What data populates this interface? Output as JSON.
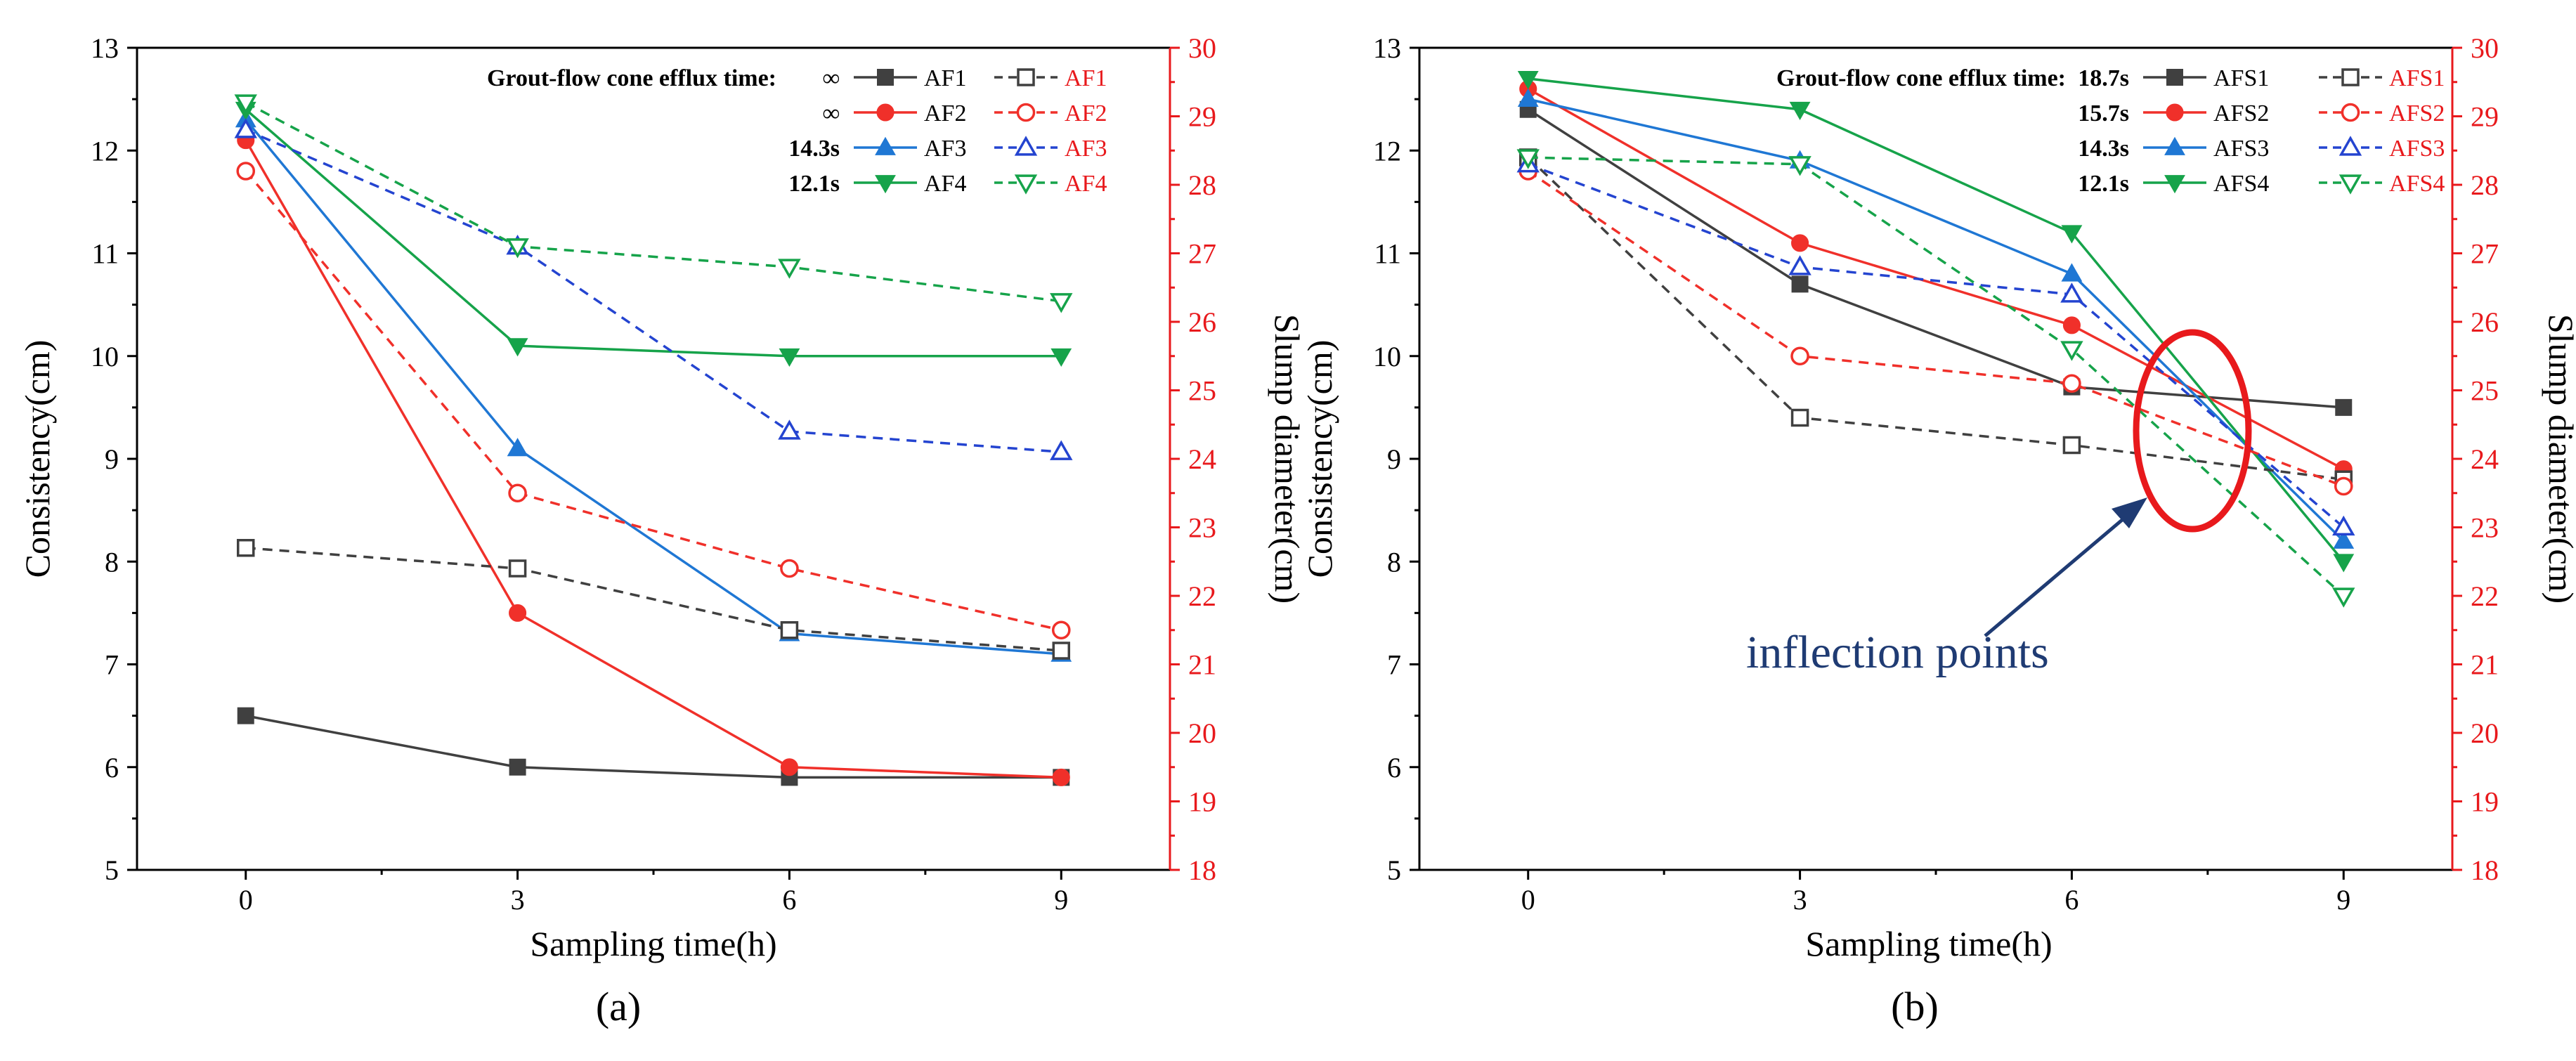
{
  "figure": {
    "panels": [
      "(a)",
      "(b)"
    ]
  },
  "annotation": {
    "text": "inflection points",
    "color": "#1f3b73",
    "ellipse_color": "#e8191c"
  },
  "chart_data": [
    {
      "panel_label": "(a)",
      "type": "line",
      "xlabel": "Sampling time(h)",
      "ylabel": "Consistency(cm)",
      "ylabel_right": "Slump diameter(cm)",
      "x": [
        0,
        3,
        6,
        9
      ],
      "xticks": [
        0,
        3,
        6,
        9
      ],
      "xlim": [
        -1.2,
        10.2
      ],
      "ylim": [
        5,
        13
      ],
      "yticks": [
        5,
        6,
        7,
        8,
        9,
        10,
        11,
        12,
        13
      ],
      "ylim_right": [
        18,
        30
      ],
      "yticks_right": [
        18,
        19,
        20,
        21,
        22,
        23,
        24,
        25,
        26,
        27,
        28,
        29,
        30
      ],
      "legend_title": "Grout-flow cone efflux time:",
      "legend_times": [
        "∞",
        "∞",
        "14.3s",
        "12.1s"
      ],
      "series": [
        {
          "name": "AF1",
          "axis": "left",
          "color": "#404040",
          "marker": "square",
          "filled": true,
          "dash": false,
          "values": [
            6.5,
            6.0,
            5.9,
            5.9
          ]
        },
        {
          "name": "AF2",
          "axis": "left",
          "color": "#f0302a",
          "marker": "circle",
          "filled": true,
          "dash": false,
          "values": [
            12.1,
            7.5,
            6.0,
            5.9
          ]
        },
        {
          "name": "AF3",
          "axis": "left",
          "color": "#1f77d4",
          "marker": "triangle-up",
          "filled": true,
          "dash": false,
          "values": [
            12.3,
            9.1,
            7.3,
            7.1
          ]
        },
        {
          "name": "AF4",
          "axis": "left",
          "color": "#16a34a",
          "marker": "triangle-down",
          "filled": true,
          "dash": false,
          "values": [
            12.4,
            10.1,
            10.0,
            10.0
          ]
        },
        {
          "name": "AF1",
          "axis": "right",
          "color": "#404040",
          "marker": "square",
          "filled": false,
          "dash": true,
          "values": [
            22.7,
            22.4,
            21.5,
            21.2
          ]
        },
        {
          "name": "AF2",
          "axis": "right",
          "color": "#f0302a",
          "marker": "circle",
          "filled": false,
          "dash": true,
          "values": [
            28.2,
            23.5,
            22.4,
            21.5
          ]
        },
        {
          "name": "AF3",
          "axis": "right",
          "color": "#2444d0",
          "marker": "triangle-up",
          "filled": false,
          "dash": true,
          "values": [
            28.8,
            27.1,
            24.4,
            24.1
          ]
        },
        {
          "name": "AF4",
          "axis": "right",
          "color": "#16a34a",
          "marker": "triangle-down",
          "filled": false,
          "dash": true,
          "values": [
            29.2,
            27.1,
            26.8,
            26.3
          ]
        }
      ]
    },
    {
      "panel_label": "(b)",
      "type": "line",
      "xlabel": "Sampling time(h)",
      "ylabel": "Consistency(cm)",
      "ylabel_right": "Slump diameter(cm)",
      "x": [
        0,
        3,
        6,
        9
      ],
      "xticks": [
        0,
        3,
        6,
        9
      ],
      "xlim": [
        -1.2,
        10.2
      ],
      "ylim": [
        5,
        13
      ],
      "yticks": [
        5,
        6,
        7,
        8,
        9,
        10,
        11,
        12,
        13
      ],
      "ylim_right": [
        18,
        30
      ],
      "yticks_right": [
        18,
        19,
        20,
        21,
        22,
        23,
        24,
        25,
        26,
        27,
        28,
        29,
        30
      ],
      "legend_title": "Grout-flow cone efflux time:",
      "legend_times": [
        "18.7s",
        "15.7s",
        "14.3s",
        "12.1s"
      ],
      "series": [
        {
          "name": "AFS1",
          "axis": "left",
          "color": "#404040",
          "marker": "square",
          "filled": true,
          "dash": false,
          "values": [
            12.4,
            10.7,
            9.7,
            9.5
          ]
        },
        {
          "name": "AFS2",
          "axis": "left",
          "color": "#f0302a",
          "marker": "circle",
          "filled": true,
          "dash": false,
          "values": [
            12.6,
            11.1,
            10.3,
            8.9
          ]
        },
        {
          "name": "AFS3",
          "axis": "left",
          "color": "#1f77d4",
          "marker": "triangle-up",
          "filled": true,
          "dash": false,
          "values": [
            12.5,
            11.9,
            10.8,
            8.2
          ]
        },
        {
          "name": "AFS4",
          "axis": "left",
          "color": "#16a34a",
          "marker": "triangle-down",
          "filled": true,
          "dash": false,
          "values": [
            12.7,
            12.4,
            11.2,
            8.0
          ]
        },
        {
          "name": "AFS1",
          "axis": "right",
          "color": "#404040",
          "marker": "square",
          "filled": false,
          "dash": true,
          "values": [
            28.4,
            24.6,
            24.2,
            23.7
          ]
        },
        {
          "name": "AFS2",
          "axis": "right",
          "color": "#f0302a",
          "marker": "circle",
          "filled": false,
          "dash": true,
          "values": [
            28.2,
            25.5,
            25.1,
            23.6
          ]
        },
        {
          "name": "AFS3",
          "axis": "right",
          "color": "#2444d0",
          "marker": "triangle-up",
          "filled": false,
          "dash": true,
          "values": [
            28.3,
            26.8,
            26.4,
            23.0
          ]
        },
        {
          "name": "AFS4",
          "axis": "right",
          "color": "#16a34a",
          "marker": "triangle-down",
          "filled": false,
          "dash": true,
          "values": [
            28.4,
            28.3,
            25.6,
            22.0
          ]
        }
      ]
    }
  ]
}
